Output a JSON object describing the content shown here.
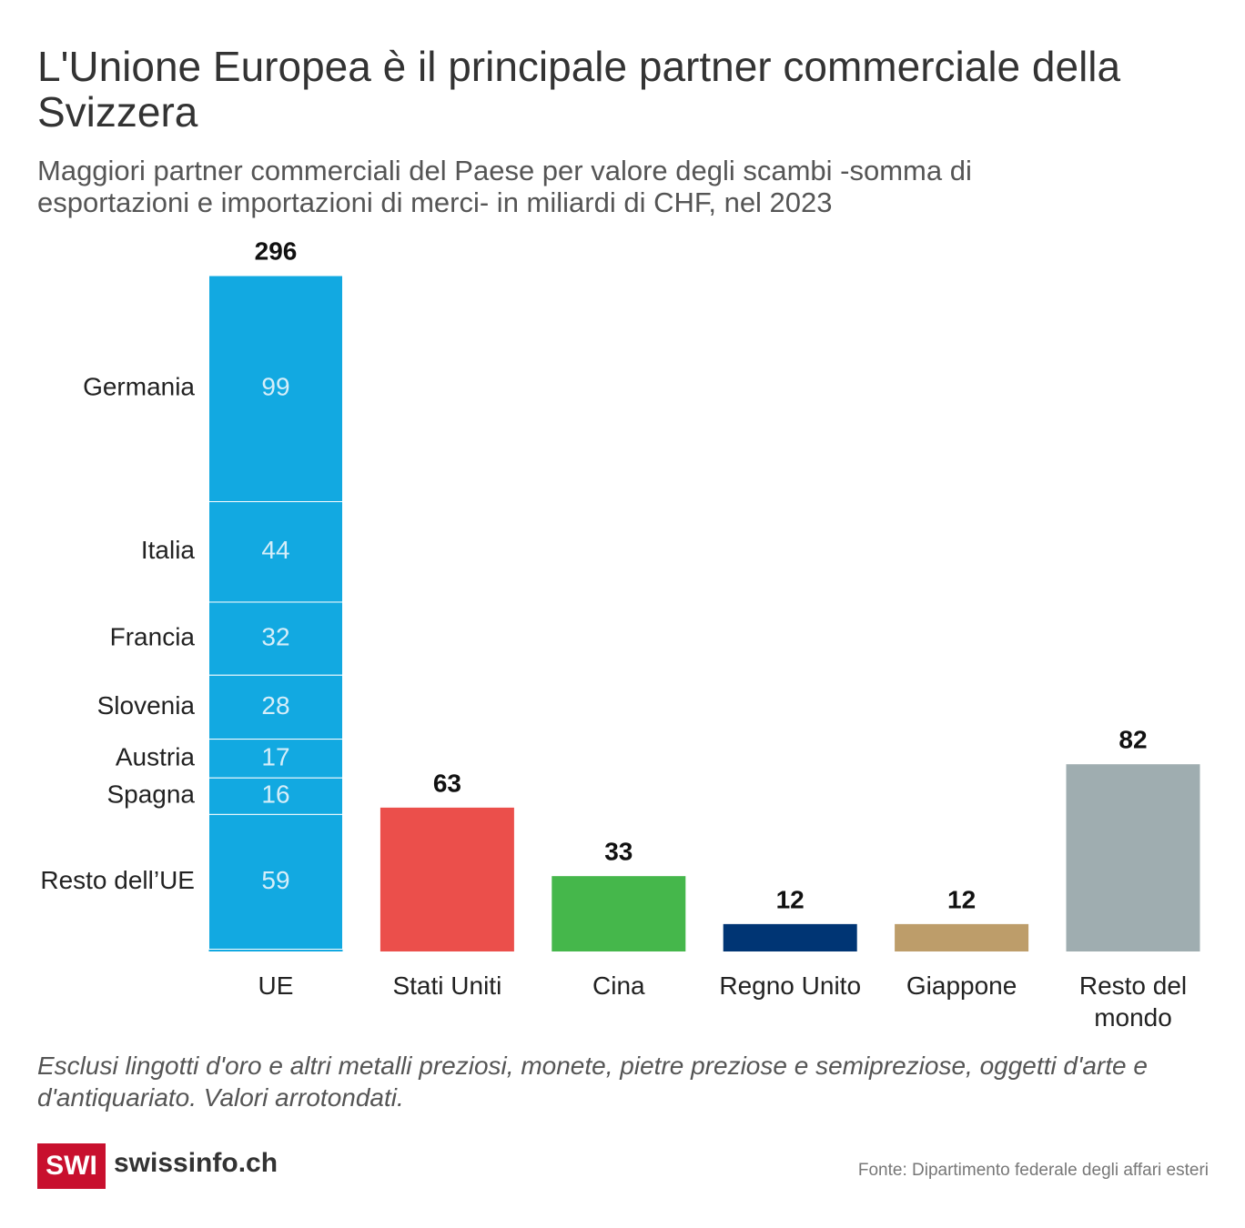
{
  "title": "L'Unione Europea è il principale partner commerciale della Svizzera",
  "subtitle": "Maggiori partner commerciali del Paese per valore degli scambi -somma di esportazioni e importazioni di merci- in miliardi di CHF, nel 2023",
  "chart_data": {
    "type": "bar",
    "categories": [
      "UE",
      "Stati Uniti",
      "Cina",
      "Regno Unito",
      "Giappone",
      "Resto del mondo"
    ],
    "values": [
      296,
      63,
      33,
      12,
      12,
      82
    ],
    "colors": [
      "#12a9e1",
      "#eb4f4b",
      "#45b74b",
      "#003574",
      "#bd9d6a",
      "#9fadb0"
    ],
    "ue_breakdown": {
      "categories": [
        "Germania",
        "Italia",
        "Francia",
        "Slovenia",
        "Austria",
        "Spagna",
        "Resto dell’UE"
      ],
      "values": [
        99,
        44,
        32,
        28,
        17,
        16,
        59
      ]
    }
  },
  "note": "Esclusi lingotti d'oro e altri metalli preziosi, monete, pietre preziose e semipreziose, oggetti d'arte e d'antiquariato. Valori arrotondati.",
  "logo": {
    "mark": "SWI",
    "text": "swissinfo.ch"
  },
  "source": "Fonte: Dipartimento federale degli affari esteri"
}
